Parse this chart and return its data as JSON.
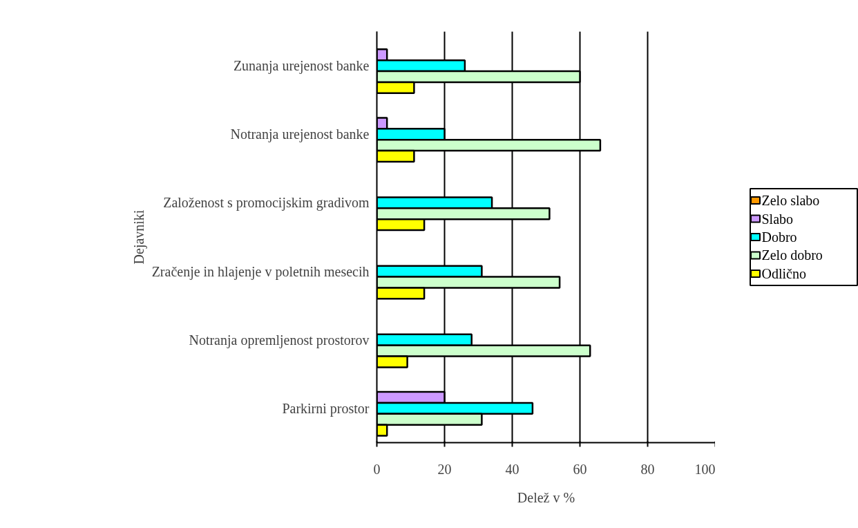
{
  "chart_data": {
    "type": "bar",
    "orientation": "horizontal",
    "xlabel": "Delež v %",
    "ylabel": "Dejavniki",
    "categories": [
      "Zunanja urejenost banke",
      "Notranja urejenost banke",
      "Založenost s promocijskim gradivom",
      "Zračenje in hlajenje v poletnih mesecih",
      "Notranja opremljenost prostorov",
      "Parkirni prostor"
    ],
    "series": [
      {
        "name": "Zelo slabo",
        "color": "#ff9900",
        "values": [
          0,
          0,
          0,
          0,
          0,
          0
        ]
      },
      {
        "name": "Slabo",
        "color": "#cc99ff",
        "values": [
          3,
          3,
          0,
          0,
          0,
          20
        ]
      },
      {
        "name": "Dobro",
        "color": "#00ffff",
        "values": [
          26,
          20,
          34,
          31,
          28,
          46
        ]
      },
      {
        "name": "Zelo dobro",
        "color": "#ccffcc",
        "values": [
          60,
          66,
          51,
          54,
          63,
          31
        ]
      },
      {
        "name": "Odlično",
        "color": "#ffff00",
        "values": [
          11,
          11,
          14,
          14,
          9,
          3
        ]
      }
    ],
    "xlim": [
      0,
      100
    ],
    "xticks": [
      0,
      20,
      40,
      60,
      80,
      100
    ],
    "grid": "x",
    "legend": "right"
  }
}
